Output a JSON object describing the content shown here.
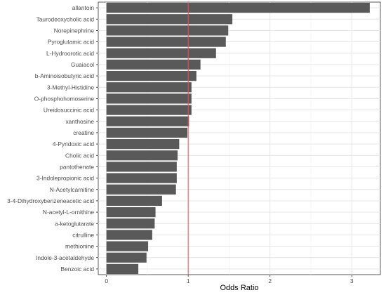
{
  "chart_data": {
    "type": "bar",
    "orientation": "horizontal",
    "xlabel": "Odds Ratio",
    "ylabel": "",
    "xlim": [
      -0.1,
      3.35
    ],
    "xticks": [
      0,
      1,
      2,
      3
    ],
    "reference_line": {
      "x": 1,
      "color": "#e0565b"
    },
    "grid": true,
    "bar_color": "#595959",
    "categories": [
      "allantoin",
      "Taurodeoxycholic acid",
      "Norepinephrine",
      "Pyroglutamic acid",
      "L-Hydroorotic acid",
      "Guaiacol",
      "b-Aminoisobutyric acid",
      "3-Methyl-Histidine",
      "O-phosphohomoserine",
      "Ureidosuccinic acid",
      "xanthosine",
      "creatine",
      "4-Pyridoxic acid",
      "Cholic acid",
      "pantothenate",
      "3-Indolepropionic acid",
      "N-Acetylcarnitine",
      "3-4-Dihydroxybenzeneacetic acid",
      "N-acetyl-L-ornithine",
      "a-ketoglutarate",
      "citrulline",
      "methionine",
      "Indole-3-acetaldehyde",
      "Benzoic acid"
    ],
    "values": [
      3.22,
      1.54,
      1.49,
      1.46,
      1.34,
      1.15,
      1.1,
      1.04,
      1.04,
      1.04,
      1.01,
      0.99,
      0.89,
      0.87,
      0.86,
      0.86,
      0.85,
      0.68,
      0.6,
      0.59,
      0.56,
      0.51,
      0.49,
      0.39
    ]
  }
}
